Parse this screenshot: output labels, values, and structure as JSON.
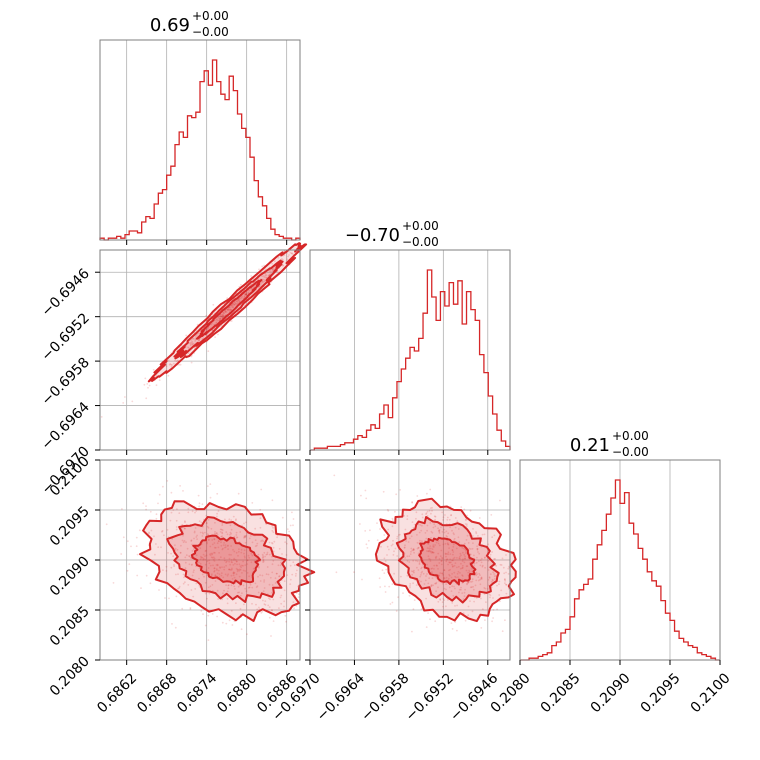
{
  "chart_data": {
    "type": "corner",
    "color": "#d62728",
    "titles": [
      {
        "value": "0.69",
        "plus": "+0.00",
        "minus": "−0.00"
      },
      {
        "value": "−0.70",
        "plus": "+0.00",
        "minus": "−0.00"
      },
      {
        "value": "0.21",
        "plus": "+0.00",
        "minus": "−0.00"
      }
    ],
    "params": [
      {
        "range": [
          0.6858,
          0.6888
        ],
        "ticks": [
          0.6862,
          0.6868,
          0.6874,
          0.688,
          0.6886
        ],
        "tick_labels": [
          "0.6862",
          "0.6868",
          "0.6874",
          "0.6880",
          "0.6886"
        ]
      },
      {
        "range": [
          -0.697,
          -0.6943
        ],
        "ticks": [
          -0.697,
          -0.6964,
          -0.6958,
          -0.6952,
          -0.6946
        ],
        "tick_labels": [
          "−0.6970",
          "−0.6964",
          "−0.6958",
          "−0.6952",
          "−0.6946"
        ]
      },
      {
        "range": [
          0.208,
          0.21
        ],
        "ticks": [
          0.208,
          0.2085,
          0.209,
          0.2095,
          0.21
        ],
        "tick_labels": [
          "0.2080",
          "0.2085",
          "0.2090",
          "0.2095",
          "0.2100"
        ]
      }
    ],
    "histograms": [
      {
        "counts": [
          0.01,
          0.0,
          0.01,
          0.01,
          0.02,
          0.01,
          0.03,
          0.05,
          0.05,
          0.04,
          0.1,
          0.13,
          0.12,
          0.2,
          0.26,
          0.28,
          0.36,
          0.41,
          0.53,
          0.6,
          0.57,
          0.69,
          0.68,
          0.71,
          0.88,
          0.94,
          0.86,
          1.0,
          0.88,
          0.81,
          0.78,
          0.91,
          0.83,
          0.7,
          0.62,
          0.57,
          0.46,
          0.33,
          0.24,
          0.19,
          0.12,
          0.06,
          0.03,
          0.02,
          0.01,
          0.01,
          0.0,
          0.01
        ]
      },
      {
        "counts": [
          0.0,
          0.01,
          0.01,
          0.01,
          0.02,
          0.02,
          0.02,
          0.03,
          0.04,
          0.04,
          0.06,
          0.08,
          0.07,
          0.11,
          0.14,
          0.12,
          0.2,
          0.25,
          0.18,
          0.29,
          0.38,
          0.45,
          0.51,
          0.57,
          0.55,
          0.62,
          0.76,
          1.0,
          0.85,
          0.72,
          0.88,
          0.8,
          0.93,
          0.81,
          0.94,
          0.7,
          0.88,
          0.78,
          0.72,
          0.53,
          0.43,
          0.3,
          0.2,
          0.11,
          0.05,
          0.02
        ]
      },
      {
        "counts": [
          0.0,
          0.0,
          0.01,
          0.01,
          0.02,
          0.03,
          0.04,
          0.08,
          0.1,
          0.15,
          0.17,
          0.24,
          0.34,
          0.39,
          0.42,
          0.45,
          0.56,
          0.64,
          0.72,
          0.81,
          0.9,
          1.0,
          0.87,
          0.93,
          0.76,
          0.7,
          0.62,
          0.56,
          0.49,
          0.44,
          0.41,
          0.33,
          0.26,
          0.22,
          0.16,
          0.12,
          0.1,
          0.08,
          0.07,
          0.04,
          0.03,
          0.02,
          0.01,
          0.0
        ]
      }
    ]
  }
}
